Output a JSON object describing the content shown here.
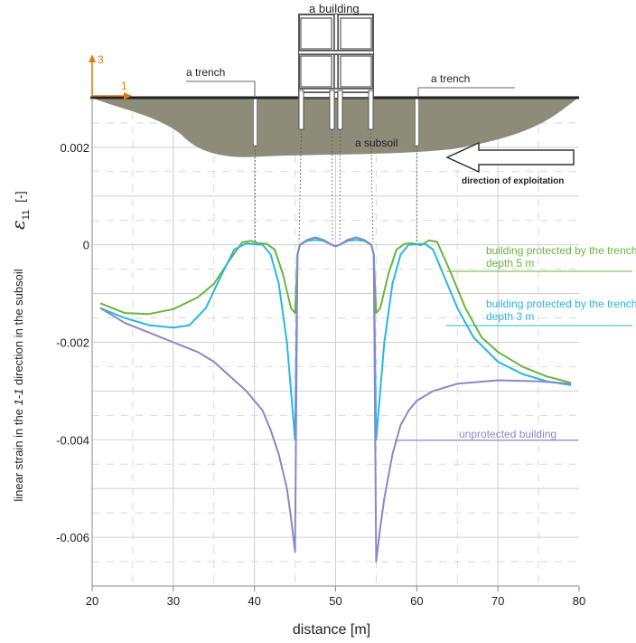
{
  "chart_data": {
    "type": "line",
    "xlabel": "distance [m]",
    "ylabel_prefix": "linear strain in the ",
    "ylabel_italic": "1-1",
    "ylabel_suffix": " direction in the subsoil",
    "ylabel_symbol": "ε",
    "ylabel_subscript": "11",
    "ylabel_unit": "[-]",
    "xlim": [
      20,
      80
    ],
    "ylim": [
      -0.007,
      0.004
    ],
    "x_ticks": [
      20,
      30,
      40,
      50,
      60,
      70,
      80
    ],
    "x_tick_labels": [
      "20",
      "30",
      "40",
      "50",
      "60",
      "70",
      "80"
    ],
    "y_ticks": [
      0.002,
      0,
      -0.002,
      -0.004,
      -0.006
    ],
    "y_tick_labels": [
      "0.002",
      "0",
      "-0.002",
      "-0.004",
      "-0.006"
    ],
    "grid": true,
    "series": [
      {
        "name": "building protected by the trench depth 5 m",
        "label_lines": [
          "building protected by the trench",
          "depth 5 m"
        ],
        "color": "#6ab53c",
        "points": [
          [
            21,
            -0.0012
          ],
          [
            24,
            -0.0014
          ],
          [
            27,
            -0.00142
          ],
          [
            30,
            -0.00132
          ],
          [
            33,
            -0.00108
          ],
          [
            35,
            -0.0008
          ],
          [
            37,
            -0.0003
          ],
          [
            38.5,
            5e-05
          ],
          [
            39.5,
            8e-05
          ],
          [
            40.5,
            3e-05
          ],
          [
            41.5,
            2e-05
          ],
          [
            42.5,
            -0.0001
          ],
          [
            43.5,
            -0.0006
          ],
          [
            44.5,
            -0.0013
          ],
          [
            45,
            -0.0014
          ],
          [
            45.3,
            -0.0002
          ],
          [
            45.6,
            0
          ],
          [
            46.5,
            0.0001
          ],
          [
            47.5,
            0.00015
          ],
          [
            48.5,
            0.0001
          ],
          [
            49.5,
            0
          ],
          [
            50,
            -3e-05
          ],
          [
            50.5,
            0
          ],
          [
            51.5,
            0.0001
          ],
          [
            52.5,
            0.00015
          ],
          [
            53.5,
            0.0001
          ],
          [
            54.4,
            0
          ],
          [
            54.7,
            -0.0002
          ],
          [
            55,
            -0.0014
          ],
          [
            55.5,
            -0.0013
          ],
          [
            56.5,
            -0.0006
          ],
          [
            57.5,
            -0.0001
          ],
          [
            58.5,
            2e-05
          ],
          [
            59.5,
            3e-05
          ],
          [
            60.5,
            -1e-05
          ],
          [
            61.5,
            9e-05
          ],
          [
            62.5,
            6e-05
          ],
          [
            64,
            -0.0005
          ],
          [
            66,
            -0.0013
          ],
          [
            68,
            -0.0019
          ],
          [
            70,
            -0.0022
          ],
          [
            73,
            -0.0025
          ],
          [
            76,
            -0.0027
          ],
          [
            79,
            -0.00283
          ]
        ]
      },
      {
        "name": "building protected by the trench depth 3 m",
        "label_lines": [
          "building protected by the trench",
          "depth 3 m"
        ],
        "color": "#2bb6e2",
        "points": [
          [
            21,
            -0.0013
          ],
          [
            24,
            -0.0015
          ],
          [
            27,
            -0.00165
          ],
          [
            30,
            -0.0017
          ],
          [
            32,
            -0.00165
          ],
          [
            34,
            -0.0013
          ],
          [
            36,
            -0.0006
          ],
          [
            37.5,
            -0.0001
          ],
          [
            39,
            3e-05
          ],
          [
            40,
            1e-05
          ],
          [
            41,
            0
          ],
          [
            42,
            -0.0002
          ],
          [
            43,
            -0.0008
          ],
          [
            44,
            -0.002
          ],
          [
            44.6,
            -0.0032
          ],
          [
            45,
            -0.004
          ],
          [
            45.3,
            -0.0002
          ],
          [
            45.6,
            0
          ],
          [
            46.5,
            8e-05
          ],
          [
            47.5,
            0.0001
          ],
          [
            48.5,
            8e-05
          ],
          [
            49.5,
            0
          ],
          [
            50,
            -3e-05
          ],
          [
            50.5,
            0
          ],
          [
            51.5,
            8e-05
          ],
          [
            52.5,
            0.0001
          ],
          [
            53.5,
            8e-05
          ],
          [
            54.4,
            0
          ],
          [
            54.7,
            -0.0002
          ],
          [
            55,
            -0.004
          ],
          [
            55.4,
            -0.0032
          ],
          [
            56,
            -0.002
          ],
          [
            57,
            -0.0008
          ],
          [
            58,
            -0.0002
          ],
          [
            59,
            0
          ],
          [
            60,
            1e-05
          ],
          [
            61,
            2e-05
          ],
          [
            62,
            -0.0001
          ],
          [
            63,
            -0.0005
          ],
          [
            65,
            -0.0013
          ],
          [
            67,
            -0.0019
          ],
          [
            70,
            -0.0024
          ],
          [
            73,
            -0.00265
          ],
          [
            76,
            -0.0028
          ],
          [
            79,
            -0.00288
          ]
        ]
      },
      {
        "name": "unprotected building",
        "label_lines": [
          "unprotected building"
        ],
        "color": "#8b87c8",
        "points": [
          [
            21,
            -0.0013
          ],
          [
            24,
            -0.0016
          ],
          [
            27,
            -0.0018
          ],
          [
            30,
            -0.002
          ],
          [
            33,
            -0.0022
          ],
          [
            35,
            -0.0024
          ],
          [
            37,
            -0.0027
          ],
          [
            39,
            -0.003
          ],
          [
            41,
            -0.0034
          ],
          [
            42,
            -0.0038
          ],
          [
            43,
            -0.0043
          ],
          [
            44,
            -0.005
          ],
          [
            44.5,
            -0.0056
          ],
          [
            45,
            -0.0063
          ],
          [
            45.3,
            -0.0002
          ],
          [
            45.6,
            0
          ],
          [
            46.5,
            0.0001
          ],
          [
            47.5,
            0.00015
          ],
          [
            48.5,
            0.0001
          ],
          [
            49.5,
            0
          ],
          [
            50,
            -3e-05
          ],
          [
            50.5,
            0
          ],
          [
            51.5,
            0.0001
          ],
          [
            52.5,
            0.00015
          ],
          [
            53.5,
            0.0001
          ],
          [
            54.4,
            0
          ],
          [
            54.7,
            -0.0002
          ],
          [
            55,
            -0.0065
          ],
          [
            55.5,
            -0.0058
          ],
          [
            56,
            -0.0052
          ],
          [
            57,
            -0.0043
          ],
          [
            58,
            -0.0037
          ],
          [
            59,
            -0.0034
          ],
          [
            60,
            -0.0032
          ],
          [
            62,
            -0.003
          ],
          [
            65,
            -0.00285
          ],
          [
            70,
            -0.00278
          ],
          [
            75,
            -0.0028
          ],
          [
            79,
            -0.00285
          ]
        ]
      }
    ],
    "annotations": {
      "building": "a building",
      "trench_left": "a trench",
      "trench_right": "a trench",
      "subsoil": "a subsoil",
      "exploitation": "direction of exploitation",
      "axis_3": "3",
      "axis_1": "1"
    },
    "colors": {
      "ground": "#8c8c78",
      "axes_arrows": "#e07a1a"
    }
  }
}
